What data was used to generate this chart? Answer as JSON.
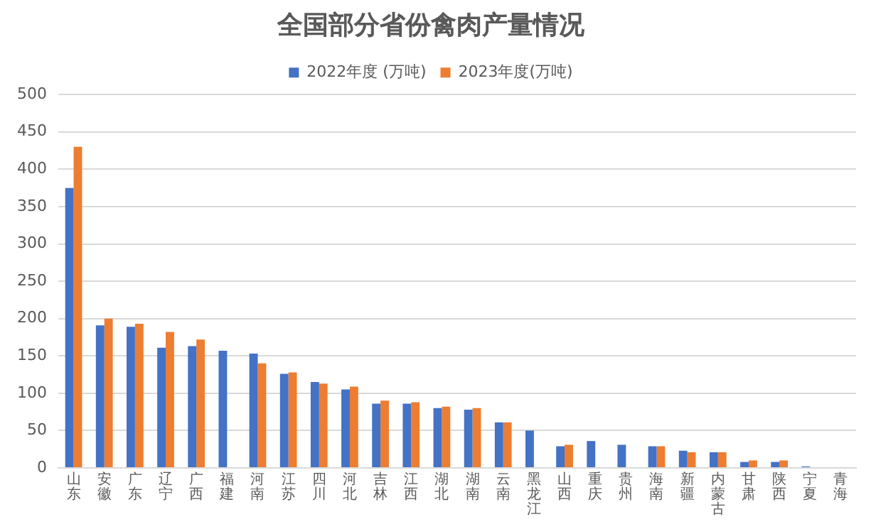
{
  "chart_data": {
    "type": "bar",
    "title": "全国部分省份禽肉产量情况",
    "categories": [
      "山东",
      "安徽",
      "广东",
      "辽宁",
      "广西",
      "福建",
      "河南",
      "江苏",
      "四川",
      "河北",
      "吉林",
      "江西",
      "湖北",
      "湖南",
      "云南",
      "黑龙江",
      "山西",
      "重庆",
      "贵州",
      "海南",
      "新疆",
      "内蒙古",
      "甘肃",
      "陕西",
      "宁夏",
      "青海"
    ],
    "series": [
      {
        "name": "2022年度 (万吨)",
        "color": "#4472c4",
        "values": [
          375,
          191,
          189,
          161,
          163,
          157,
          153,
          126,
          115,
          105,
          86,
          86,
          80,
          78,
          61,
          50,
          29,
          36,
          31,
          29,
          23,
          21,
          8,
          8,
          2,
          null
        ]
      },
      {
        "name": "2023年度(万吨)",
        "color": "#ed7d31",
        "values": [
          430,
          200,
          193,
          182,
          172,
          null,
          140,
          128,
          113,
          109,
          90,
          88,
          82,
          80,
          61,
          null,
          31,
          null,
          null,
          29,
          21,
          21,
          10,
          10,
          null,
          null
        ]
      }
    ],
    "ylim": [
      0,
      500
    ],
    "yticks": [
      0,
      50,
      100,
      150,
      200,
      250,
      300,
      350,
      400,
      450,
      500
    ],
    "grid": "y",
    "legend": "top"
  }
}
